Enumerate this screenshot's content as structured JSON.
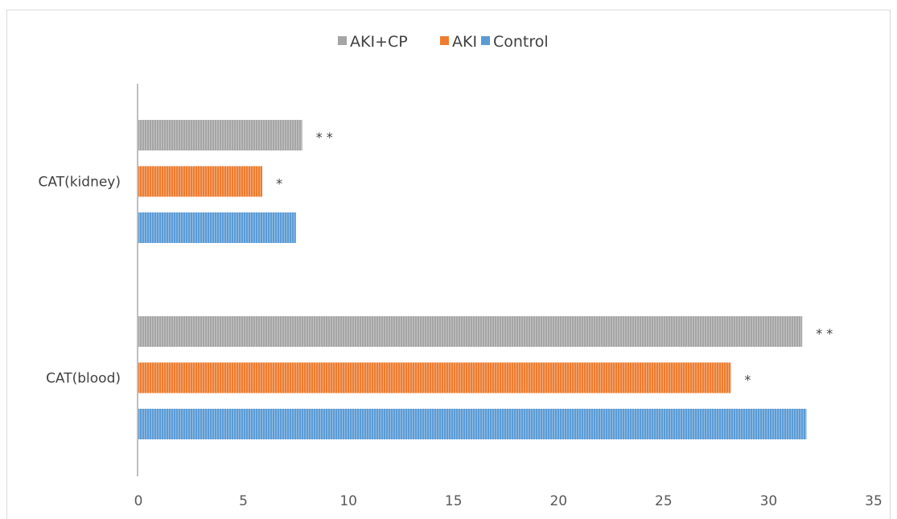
{
  "chart_data": {
    "type": "bar",
    "orientation": "horizontal",
    "categories": [
      "CAT(kidney)",
      "CAT(blood)"
    ],
    "series": [
      {
        "name": "Control",
        "values": [
          7.5,
          31.8
        ],
        "color": "#5b9bd5",
        "annotations": [
          "",
          ""
        ]
      },
      {
        "name": "AKI",
        "values": [
          5.9,
          28.2
        ],
        "color": "#ed7d31",
        "annotations": [
          "*",
          "*"
        ]
      },
      {
        "name": "AKI+CP",
        "values": [
          7.8,
          31.6
        ],
        "color": "#a5a5a5",
        "annotations": [
          "**",
          "**"
        ]
      }
    ],
    "legend_order": [
      "AKI+CP",
      "AKI",
      "Control"
    ],
    "legend_position": "top",
    "xlim": [
      0,
      35
    ],
    "xticks": [
      0,
      5,
      10,
      15,
      20,
      25,
      30,
      35
    ],
    "gridlines": false,
    "bar_texture": "vertical-hatch"
  }
}
